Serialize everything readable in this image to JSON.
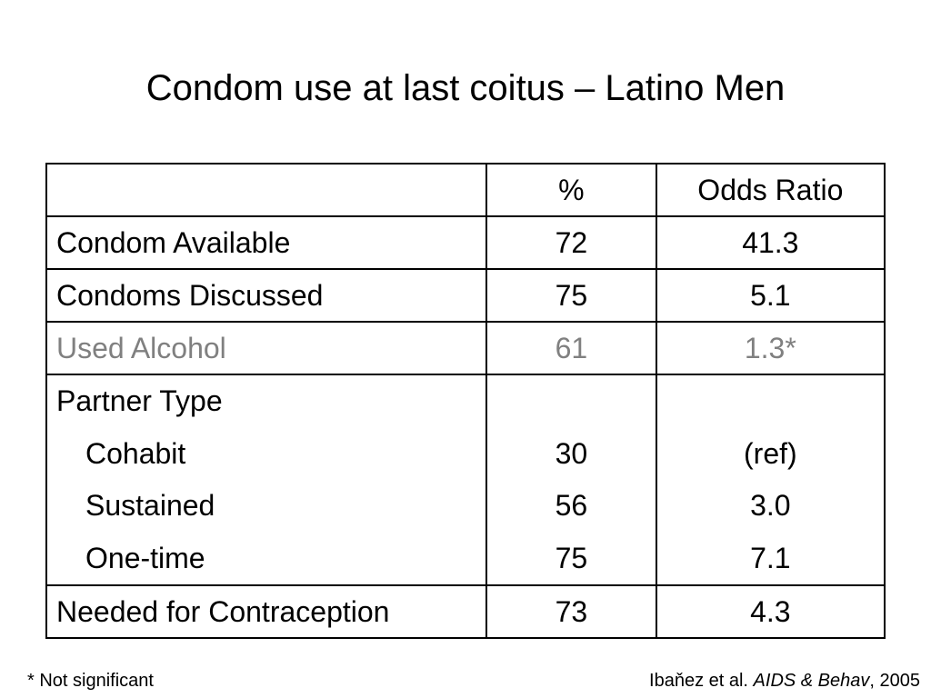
{
  "slide": {
    "title": "Condom use at last coitus – Latino Men"
  },
  "table": {
    "headers": [
      "",
      "%",
      "Odds Ratio"
    ],
    "rows": [
      {
        "label": "Condom Available",
        "pct": "72",
        "odds_ratio": "41.3"
      },
      {
        "label": "Condoms Discussed",
        "pct": "75",
        "odds_ratio": "5.1"
      },
      {
        "label": "Used Alcohol",
        "pct": "61",
        "odds_ratio": "1.3*",
        "muted_color": "#808080"
      },
      {
        "label": "Partner Type",
        "sub_rows": [
          {
            "label": "Cohabit",
            "pct": "30",
            "odds_ratio": "(ref)"
          },
          {
            "label": "Sustained",
            "pct": "56",
            "odds_ratio": "3.0"
          },
          {
            "label": "One-time",
            "pct": "75",
            "odds_ratio": "7.1"
          }
        ]
      },
      {
        "label": "Needed for Contraception",
        "pct": "73",
        "odds_ratio": "4.3"
      }
    ]
  },
  "footer": {
    "footnote": "* Not significant",
    "citation_authors": "Ibaňez et al.",
    "citation_journal": "AIDS & Behav",
    "citation_year": ", 2005"
  }
}
